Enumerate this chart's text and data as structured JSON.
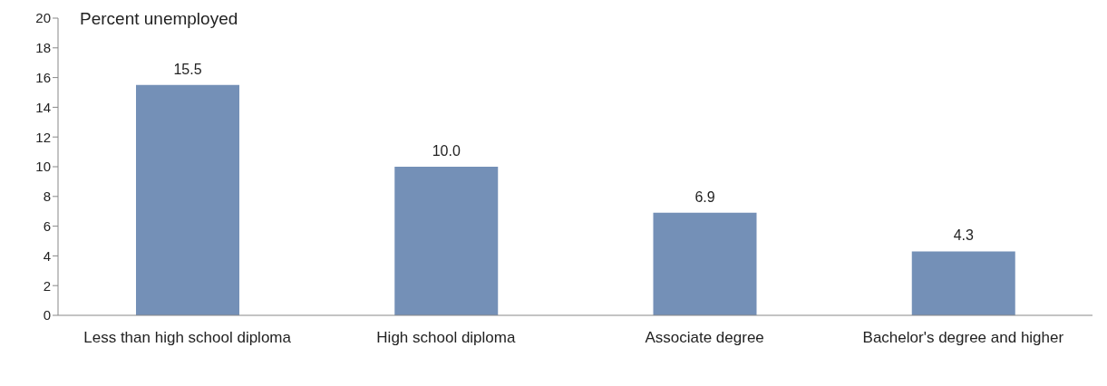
{
  "chart_data": {
    "type": "bar",
    "ylabel": "Percent unemployed",
    "categories": [
      "Less than high school diploma",
      "High school diploma",
      "Associate degree",
      "Bachelor's degree and higher"
    ],
    "values": [
      15.5,
      10.0,
      6.9,
      4.3
    ],
    "value_labels": [
      "15.5",
      "10.0",
      "6.9",
      "4.3"
    ],
    "color": "#7490b7",
    "ylim": [
      0,
      20
    ],
    "yticks": [
      0,
      2,
      4,
      6,
      8,
      10,
      12,
      14,
      16,
      18,
      20
    ],
    "grid": false,
    "legend": false
  }
}
